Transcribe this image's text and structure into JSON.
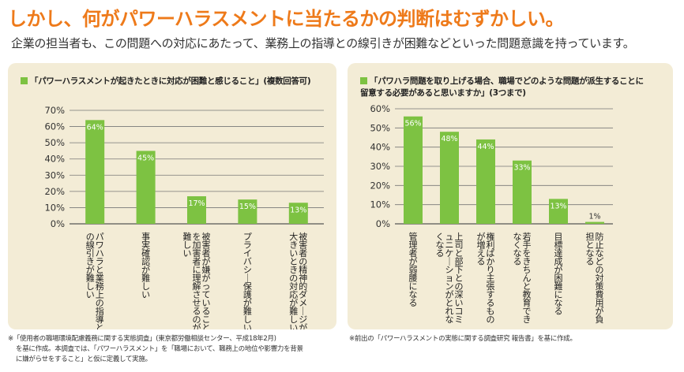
{
  "headline": "しかし、何がパワーハラスメントに当たるかの判断はむずかしい。",
  "subline": "企業の担当者も、この問題への対応にあたって、業務上の指導との線引きが困難などといった問題意識を持っています。",
  "colors": {
    "bar": "#7dc242",
    "headline": "#ee7a1a",
    "panel": "#f3ecd6"
  },
  "chart_data": [
    {
      "type": "bar",
      "title": "「パワーハラスメントが起きたときに対応が困難と感じること」(複数回答可)",
      "categories": [
        "パワハラと業務上の指導との線引きが難しい",
        "事実確認が難しい",
        "被害者が嫌がっていることを加害者に理解させるのが難しい",
        "プライバシー保護が難しい",
        "被害者の精神的ダメージが大きいときの対応が難しい"
      ],
      "values": [
        64,
        45,
        17,
        15,
        13
      ],
      "value_labels": [
        "64%",
        "45%",
        "17%",
        "15%",
        "13%"
      ],
      "yticks": [
        "0%",
        "10%",
        "20%",
        "30%",
        "40%",
        "50%",
        "60%",
        "70%"
      ],
      "ylim": [
        0,
        70
      ]
    },
    {
      "type": "bar",
      "title": "「パワハラ問題を取り上げる場合、職場でどのような問題が派生することに留意する必要があると思いますか」(3つまで)",
      "title_lines": [
        "「パワハラ問題を取り上げる場合、職場でどのような問題が派生することに",
        "留意する必要があると思いますか」(3つまで)"
      ],
      "categories": [
        "管理者が弱腰になる",
        "上司と部下との深いコミュニケーションがとれなくなる",
        "権利ばかり主張するものが増える",
        "若手をきちんと教育できなくなる",
        "目標達成が困難になる",
        "防止などの対策費用が負担となる"
      ],
      "values": [
        56,
        48,
        44,
        33,
        13,
        1
      ],
      "value_labels": [
        "56%",
        "48%",
        "44%",
        "33%",
        "13%",
        "1%"
      ],
      "yticks": [
        "0%",
        "10%",
        "20%",
        "30%",
        "40%",
        "50%",
        "60%"
      ],
      "ylim": [
        0,
        60
      ]
    }
  ],
  "notes": {
    "left": [
      "※「使用者の職場環境配慮義務に関する実態調査」(東京都労働相談センター、平成18年2月)",
      "を基に作成。本調査では、「パワーハラスメント」を「職場において、職務上の地位や影響力を背景",
      "に嫌がらせをすること」と仮に定義して実施。"
    ],
    "right": [
      "※前出の「パワーハラスメントの実態に関する調査研究 報告書」を基に作成。"
    ]
  }
}
